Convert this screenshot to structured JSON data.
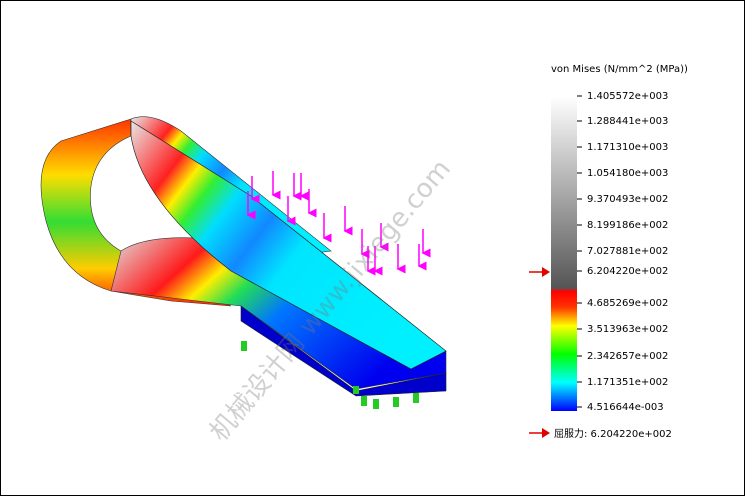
{
  "legend": {
    "title": "von Mises (N/mm^2 (MPa))",
    "labels": [
      "1.405572e+003",
      "1.288441e+003",
      "1.171310e+003",
      "1.054180e+003",
      "9.370493e+002",
      "8.199186e+002",
      "7.027881e+002",
      "6.204220e+002",
      "4.685269e+002",
      "3.513963e+002",
      "2.342657e+002",
      "1.171351e+002",
      "4.516644e-003"
    ]
  },
  "yield": {
    "label": "屈服力: 6.204220e+002"
  },
  "watermark": "机械设计网 www.jixiege.com"
}
